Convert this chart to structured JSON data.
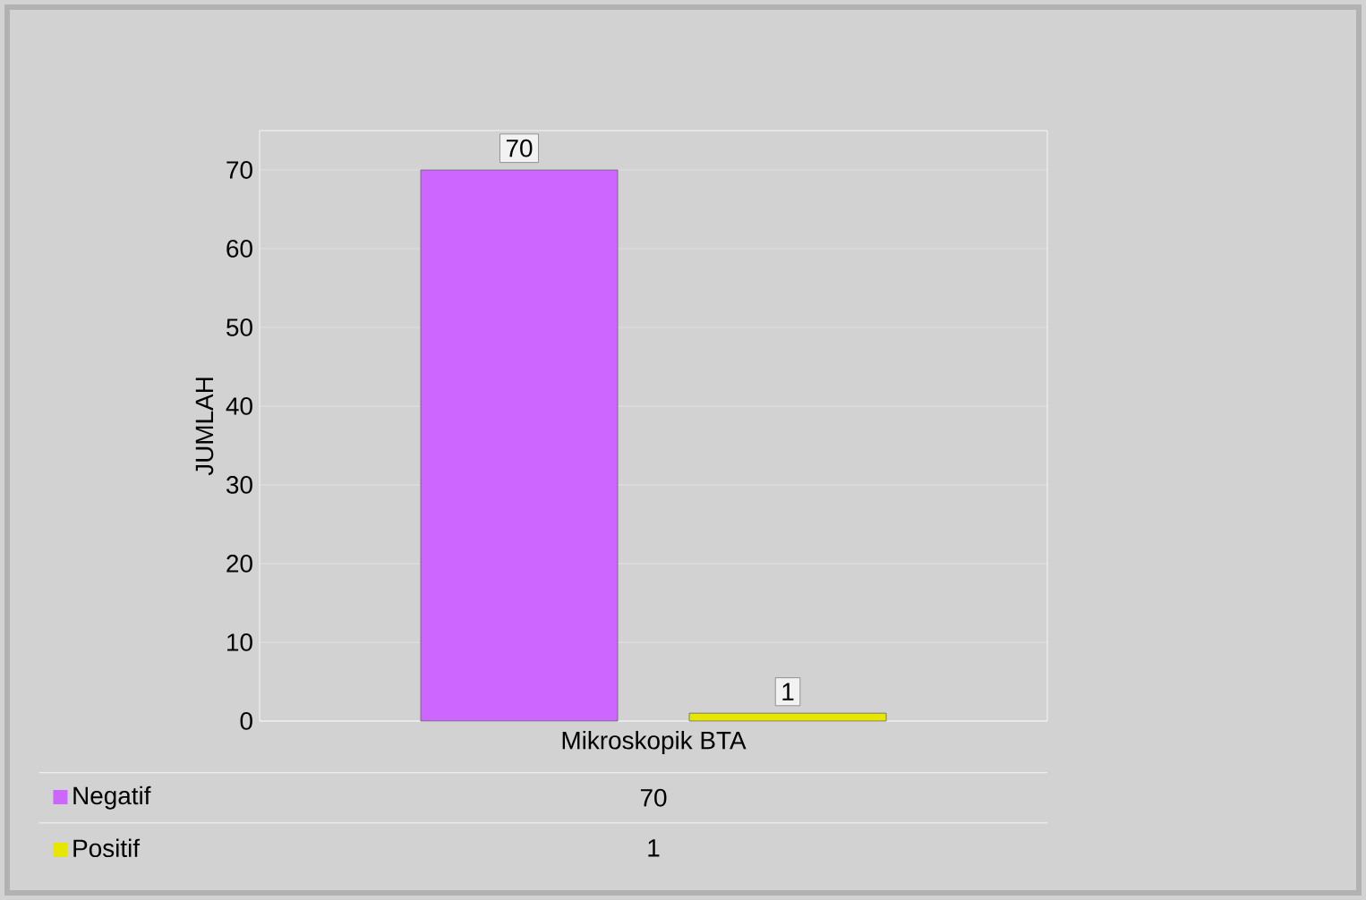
{
  "chart_data": {
    "type": "bar",
    "ylabel": "JUMLAH",
    "categories": [
      "Mikroskopik BTA"
    ],
    "series": [
      {
        "name": "Negatif",
        "color": "#cc66ff",
        "values": [
          70
        ],
        "value_labels": [
          "70"
        ]
      },
      {
        "name": "Positif",
        "color": "#e6e600",
        "values": [
          1
        ],
        "value_labels": [
          "1"
        ]
      }
    ],
    "ylim": [
      0,
      75
    ],
    "yticks": [
      0,
      10,
      20,
      30,
      40,
      50,
      60,
      70
    ],
    "grid": "y",
    "legend": "bottom"
  }
}
